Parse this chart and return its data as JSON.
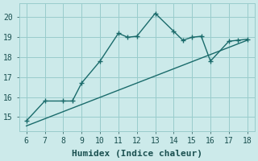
{
  "x_data": [
    6,
    7,
    8,
    8.5,
    9,
    10,
    11,
    11.5,
    12,
    13,
    14,
    14.5,
    15,
    15.5,
    16,
    17,
    17.5,
    18
  ],
  "y_data": [
    14.8,
    15.8,
    15.8,
    15.8,
    16.7,
    17.8,
    19.2,
    19.0,
    19.05,
    20.2,
    19.3,
    18.85,
    19.0,
    19.05,
    17.8,
    18.8,
    18.85,
    18.9
  ],
  "trend_x": [
    6,
    18
  ],
  "trend_y": [
    14.55,
    18.85
  ],
  "line_color": "#1a6b6b",
  "bg_color": "#cceaea",
  "grid_color": "#99cccc",
  "xlabel": "Humidex (Indice chaleur)",
  "xlim": [
    5.6,
    18.4
  ],
  "ylim": [
    14.3,
    20.7
  ],
  "xticks": [
    6,
    7,
    8,
    9,
    10,
    11,
    12,
    13,
    14,
    15,
    16,
    17,
    18
  ],
  "yticks": [
    15,
    16,
    17,
    18,
    19,
    20
  ],
  "marker_size": 4.0,
  "line_width": 1.0,
  "xlabel_fontsize": 8,
  "tick_fontsize": 7
}
